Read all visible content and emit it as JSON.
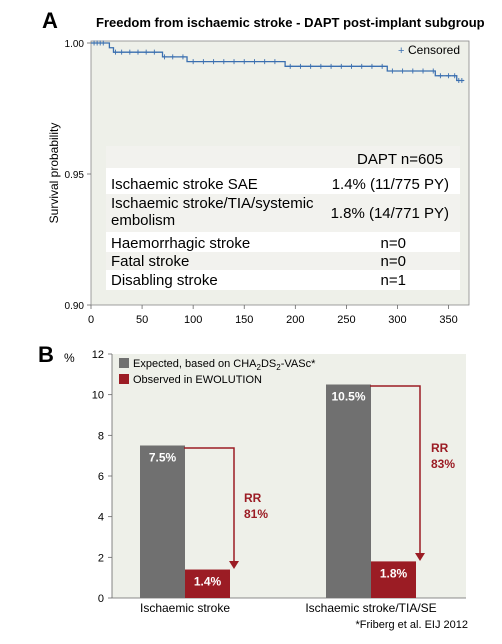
{
  "panel_a": {
    "letter": "A",
    "title": "Freedom from ischaemic stroke - DAPT post-implant subgroup",
    "legend_label": "Censored",
    "ylabel": "Survival probability",
    "table": {
      "header": "DAPT n=605",
      "rows": [
        {
          "label": "Ischaemic stroke SAE",
          "value": "1.4% (11/775 PY)"
        },
        {
          "label": "Ischaemic stroke/TIA/systemic",
          "label2": "embolism",
          "value": "1.8% (14/771 PY)"
        },
        {
          "label": "Haemorrhagic stroke",
          "value": "n=0"
        },
        {
          "label": "Fatal stroke",
          "value": "n=0"
        },
        {
          "label": "Disabling stroke",
          "value": "n=1"
        }
      ]
    }
  },
  "panel_b": {
    "letter": "B",
    "legend": [
      {
        "label": "Expected, based on CHA2DS2-VASc*",
        "color": "#707070"
      },
      {
        "label": "Observed in EWOLUTION",
        "color": "#9b1c24"
      }
    ],
    "rr_labels": [
      {
        "line1": "RR",
        "line2": "81%"
      },
      {
        "line1": "RR",
        "line2": "83%"
      }
    ],
    "footnote": "*Friberg et al. EIJ 2012"
  },
  "chart_data": [
    {
      "type": "line",
      "title": "Freedom from ischaemic stroke - DAPT post-implant subgroup",
      "xlabel": "",
      "ylabel": "Survival probability",
      "xlim": [
        0,
        370
      ],
      "ylim": [
        0.9,
        1.0
      ],
      "xticks": [
        0,
        50,
        100,
        150,
        200,
        250,
        300,
        350
      ],
      "yticks": [
        0.9,
        0.95,
        1.0
      ],
      "ytick_labels": [
        "0.90",
        "0.95",
        "1.00"
      ],
      "series": [
        {
          "name": "",
          "color": "#3a6fb0",
          "x": [
            0,
            14,
            18,
            22,
            70,
            94,
            190,
            290,
            337,
            358,
            365
          ],
          "y": [
            1.0,
            1.0,
            0.9982,
            0.9965,
            0.9947,
            0.9929,
            0.9911,
            0.9893,
            0.9875,
            0.9857,
            0.9857
          ]
        }
      ],
      "censored": {
        "x": [
          3,
          6,
          9,
          12,
          24,
          30,
          38,
          46,
          54,
          62,
          72,
          80,
          90,
          100,
          110,
          120,
          130,
          140,
          150,
          160,
          170,
          180,
          195,
          205,
          215,
          225,
          235,
          245,
          255,
          265,
          275,
          285,
          295,
          305,
          315,
          325,
          335,
          342,
          350,
          356,
          360,
          363
        ],
        "legend": "Censored"
      }
    },
    {
      "type": "bar",
      "categories": [
        "Ischaemic stroke",
        "Ischaemic stroke/TIA/SE"
      ],
      "ylabel": "%",
      "ylim": [
        0,
        12
      ],
      "yticks": [
        0,
        2,
        4,
        6,
        8,
        10,
        12
      ],
      "series": [
        {
          "name": "Expected, based on CHA2DS2-VASc*",
          "values": [
            7.5,
            10.5
          ],
          "labels": [
            "7.5%",
            "10.5%"
          ],
          "color": "#707070"
        },
        {
          "name": "Observed in EWOLUTION",
          "values": [
            1.4,
            1.8
          ],
          "labels": [
            "1.4%",
            "1.8%"
          ],
          "color": "#9b1c24"
        }
      ],
      "annotations": [
        "RR 81%",
        "RR 83%"
      ]
    }
  ]
}
